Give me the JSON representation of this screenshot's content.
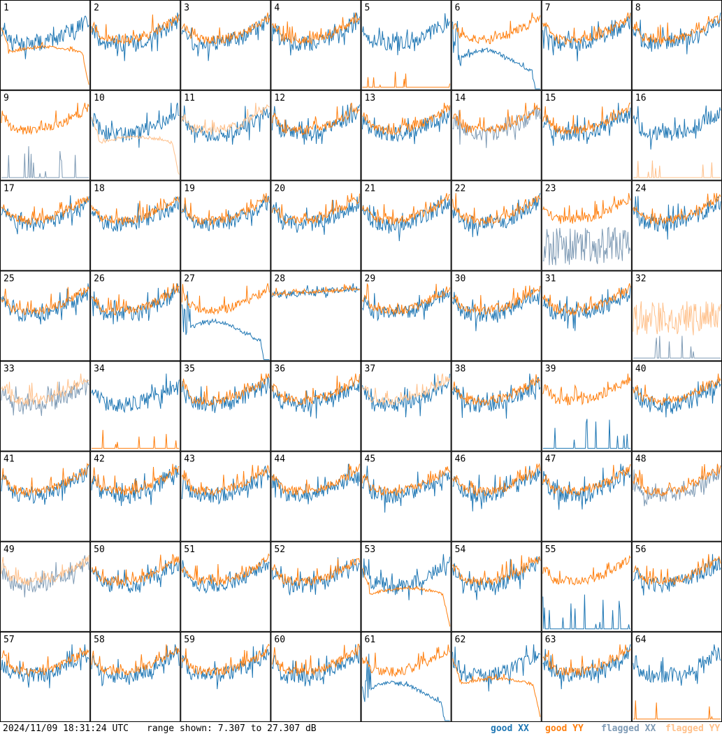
{
  "footer": {
    "timestamp": "2024/11/09 18:31:24 UTC",
    "range_text": "range shown: 7.307 to 27.307 dB"
  },
  "legend": [
    {
      "label": "good XX",
      "color": "#1f77b4"
    },
    {
      "label": "good YY",
      "color": "#ff7f0e"
    },
    {
      "label": "flagged XX",
      "color": "#7f9bb5"
    },
    {
      "label": "flagged YY",
      "color": "#ffc08a"
    }
  ],
  "chart_data": {
    "type": "line",
    "layout": "small multiples 8x8",
    "yrange_db": [
      7.307,
      27.307
    ],
    "panels": [
      {
        "label": "1",
        "xx": "good",
        "yy": "good",
        "shape": "droop-yy"
      },
      {
        "label": "2",
        "xx": "good",
        "yy": "good",
        "shape": "normal"
      },
      {
        "label": "3",
        "xx": "good",
        "yy": "good",
        "shape": "normal"
      },
      {
        "label": "4",
        "xx": "good",
        "yy": "good",
        "shape": "normal"
      },
      {
        "label": "5",
        "xx": "good",
        "yy": "good",
        "shape": "yy-spikes-low"
      },
      {
        "label": "6",
        "xx": "good",
        "yy": "good",
        "shape": "droop-xx"
      },
      {
        "label": "7",
        "xx": "good",
        "yy": "good",
        "shape": "normal"
      },
      {
        "label": "8",
        "xx": "good",
        "yy": "good",
        "shape": "normal"
      },
      {
        "label": "9",
        "xx": "flagged",
        "yy": "good",
        "shape": "xx-spikes-low"
      },
      {
        "label": "10",
        "xx": "good",
        "yy": "flagged",
        "shape": "droop-yy"
      },
      {
        "label": "11",
        "xx": "good",
        "yy": "flagged",
        "shape": "normal"
      },
      {
        "label": "12",
        "xx": "good",
        "yy": "good",
        "shape": "normal"
      },
      {
        "label": "13",
        "xx": "good",
        "yy": "good",
        "shape": "normal"
      },
      {
        "label": "14",
        "xx": "flagged",
        "yy": "good",
        "shape": "normal"
      },
      {
        "label": "15",
        "xx": "good",
        "yy": "good",
        "shape": "normal"
      },
      {
        "label": "16",
        "xx": "good",
        "yy": "flagged",
        "shape": "yy-spikes-low"
      },
      {
        "label": "17",
        "xx": "good",
        "yy": "good",
        "shape": "normal"
      },
      {
        "label": "18",
        "xx": "good",
        "yy": "good",
        "shape": "normal"
      },
      {
        "label": "19",
        "xx": "good",
        "yy": "good",
        "shape": "normal"
      },
      {
        "label": "20",
        "xx": "good",
        "yy": "good",
        "shape": "normal"
      },
      {
        "label": "21",
        "xx": "good",
        "yy": "good",
        "shape": "normal"
      },
      {
        "label": "22",
        "xx": "good",
        "yy": "good",
        "shape": "normal"
      },
      {
        "label": "23",
        "xx": "flagged",
        "yy": "good",
        "shape": "xx-noisy-low"
      },
      {
        "label": "24",
        "xx": "good",
        "yy": "good",
        "shape": "normal"
      },
      {
        "label": "25",
        "xx": "good",
        "yy": "good",
        "shape": "normal"
      },
      {
        "label": "26",
        "xx": "good",
        "yy": "good",
        "shape": "normal"
      },
      {
        "label": "27",
        "xx": "good",
        "yy": "good",
        "shape": "droop-xx"
      },
      {
        "label": "28",
        "xx": "good",
        "yy": "good",
        "shape": "flat-high"
      },
      {
        "label": "29",
        "xx": "good",
        "yy": "good",
        "shape": "normal"
      },
      {
        "label": "30",
        "xx": "good",
        "yy": "good",
        "shape": "normal"
      },
      {
        "label": "31",
        "xx": "good",
        "yy": "good",
        "shape": "normal"
      },
      {
        "label": "32",
        "xx": "flagged",
        "yy": "flagged",
        "shape": "yy-noisy"
      },
      {
        "label": "33",
        "xx": "flagged",
        "yy": "flagged",
        "shape": "normal"
      },
      {
        "label": "34",
        "xx": "good",
        "yy": "good",
        "shape": "yy-spikes-low"
      },
      {
        "label": "35",
        "xx": "good",
        "yy": "good",
        "shape": "normal"
      },
      {
        "label": "36",
        "xx": "good",
        "yy": "good",
        "shape": "normal"
      },
      {
        "label": "37",
        "xx": "good",
        "yy": "flagged",
        "shape": "normal"
      },
      {
        "label": "38",
        "xx": "good",
        "yy": "good",
        "shape": "normal"
      },
      {
        "label": "39",
        "xx": "good",
        "yy": "good",
        "shape": "xx-spikes-low"
      },
      {
        "label": "40",
        "xx": "good",
        "yy": "good",
        "shape": "normal"
      },
      {
        "label": "41",
        "xx": "good",
        "yy": "good",
        "shape": "normal"
      },
      {
        "label": "42",
        "xx": "good",
        "yy": "good",
        "shape": "normal"
      },
      {
        "label": "43",
        "xx": "good",
        "yy": "good",
        "shape": "normal"
      },
      {
        "label": "44",
        "xx": "good",
        "yy": "good",
        "shape": "normal"
      },
      {
        "label": "45",
        "xx": "good",
        "yy": "good",
        "shape": "normal"
      },
      {
        "label": "46",
        "xx": "good",
        "yy": "good",
        "shape": "normal"
      },
      {
        "label": "47",
        "xx": "good",
        "yy": "good",
        "shape": "normal"
      },
      {
        "label": "48",
        "xx": "flagged",
        "yy": "good",
        "shape": "normal"
      },
      {
        "label": "49",
        "xx": "flagged",
        "yy": "flagged",
        "shape": "normal"
      },
      {
        "label": "50",
        "xx": "good",
        "yy": "good",
        "shape": "normal"
      },
      {
        "label": "51",
        "xx": "good",
        "yy": "good",
        "shape": "normal"
      },
      {
        "label": "52",
        "xx": "good",
        "yy": "good",
        "shape": "normal"
      },
      {
        "label": "53",
        "xx": "good",
        "yy": "good",
        "shape": "droop-yy"
      },
      {
        "label": "54",
        "xx": "good",
        "yy": "good",
        "shape": "normal"
      },
      {
        "label": "55",
        "xx": "good",
        "yy": "good",
        "shape": "xx-spikes-low"
      },
      {
        "label": "56",
        "xx": "good",
        "yy": "good",
        "shape": "normal"
      },
      {
        "label": "57",
        "xx": "good",
        "yy": "good",
        "shape": "normal"
      },
      {
        "label": "58",
        "xx": "good",
        "yy": "good",
        "shape": "normal"
      },
      {
        "label": "59",
        "xx": "good",
        "yy": "good",
        "shape": "normal"
      },
      {
        "label": "60",
        "xx": "good",
        "yy": "good",
        "shape": "normal"
      },
      {
        "label": "61",
        "xx": "good",
        "yy": "good",
        "shape": "droop-xx"
      },
      {
        "label": "62",
        "xx": "good",
        "yy": "good",
        "shape": "droop-yy"
      },
      {
        "label": "63",
        "xx": "good",
        "yy": "good",
        "shape": "normal"
      },
      {
        "label": "64",
        "xx": "good",
        "yy": "good",
        "shape": "yy-spikes-low"
      }
    ]
  }
}
